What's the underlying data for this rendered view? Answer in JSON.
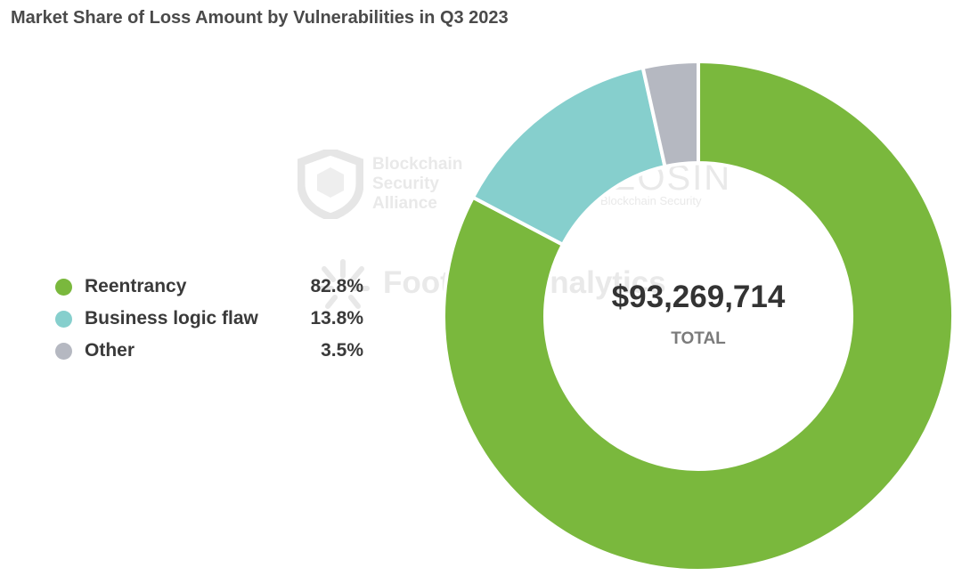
{
  "watermarks": {
    "bsa_line1": "Blockchain",
    "bsa_line2": "Security",
    "bsa_line3": "Alliance",
    "beosin_name": "BEOSIN",
    "beosin_sub": "Blockchain Security",
    "footprint": "Footprint Analytics"
  },
  "chart_data": {
    "type": "pie",
    "style": "donut",
    "title": "Market Share of Loss Amount by Vulnerabilities in Q3 2023",
    "total_value": "$93,269,714",
    "total_label": "TOTAL",
    "legend_position": "left",
    "series": [
      {
        "name": "Reentrancy",
        "value": 82.8,
        "label": "82.8%",
        "color": "#7ab83d"
      },
      {
        "name": "Business logic flaw",
        "value": 13.8,
        "label": "13.8%",
        "color": "#86cfcd"
      },
      {
        "name": "Other",
        "value": 3.5,
        "label": "3.5%",
        "color": "#b5b8c1"
      }
    ]
  }
}
